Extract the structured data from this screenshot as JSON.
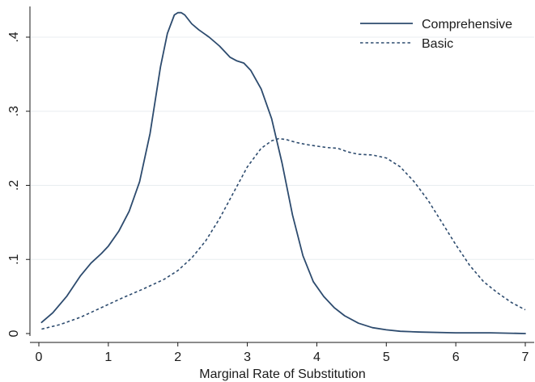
{
  "chart_data": {
    "type": "line",
    "title": "",
    "xlabel": "Marginal Rate of Substitution",
    "ylabel": "",
    "xlim": [
      0,
      7
    ],
    "ylim": [
      0,
      0.43
    ],
    "xticks": [
      0,
      1,
      2,
      3,
      4,
      5,
      6,
      7
    ],
    "xtick_labels": [
      "0",
      "1",
      "2",
      "3",
      "4",
      "5",
      "6",
      "7"
    ],
    "yticks": [
      0,
      0.1,
      0.2,
      0.3,
      0.4
    ],
    "ytick_labels": [
      "0",
      ".1",
      ".2",
      ".3",
      ".4"
    ],
    "ytick_rotation": "vertical",
    "grid": "horizontal",
    "legend_position": "top-right",
    "color": "#2d4b6e",
    "series": [
      {
        "name": "Comprehensive",
        "line_style": "solid",
        "x": [
          0.04,
          0.2,
          0.4,
          0.6,
          0.75,
          0.9,
          1.0,
          1.15,
          1.3,
          1.45,
          1.6,
          1.75,
          1.85,
          1.95,
          2.0,
          2.05,
          2.1,
          2.2,
          2.3,
          2.45,
          2.6,
          2.75,
          2.85,
          2.95,
          3.05,
          3.2,
          3.35,
          3.5,
          3.65,
          3.8,
          3.95,
          4.1,
          4.25,
          4.4,
          4.6,
          4.8,
          5.0,
          5.2,
          5.5,
          6.0,
          6.5,
          7.0
        ],
        "y": [
          0.015,
          0.028,
          0.05,
          0.078,
          0.095,
          0.108,
          0.118,
          0.138,
          0.165,
          0.205,
          0.27,
          0.36,
          0.405,
          0.43,
          0.433,
          0.433,
          0.43,
          0.418,
          0.41,
          0.4,
          0.388,
          0.373,
          0.368,
          0.365,
          0.355,
          0.33,
          0.29,
          0.23,
          0.16,
          0.105,
          0.07,
          0.05,
          0.035,
          0.024,
          0.014,
          0.008,
          0.005,
          0.003,
          0.002,
          0.001,
          0.001,
          0.0
        ],
        "values": [
          0.015,
          0.028,
          0.05,
          0.078,
          0.095,
          0.108,
          0.118,
          0.138,
          0.165,
          0.205,
          0.27,
          0.36,
          0.405,
          0.43,
          0.433,
          0.433,
          0.43,
          0.418,
          0.41,
          0.4,
          0.388,
          0.373,
          0.368,
          0.365,
          0.355,
          0.33,
          0.29,
          0.23,
          0.16,
          0.105,
          0.07,
          0.05,
          0.035,
          0.024,
          0.014,
          0.008,
          0.005,
          0.003,
          0.002,
          0.001,
          0.001,
          0.0
        ]
      },
      {
        "name": "Basic",
        "line_style": "dashed",
        "x": [
          0.04,
          0.3,
          0.6,
          0.9,
          1.2,
          1.5,
          1.8,
          2.0,
          2.2,
          2.4,
          2.6,
          2.8,
          3.0,
          3.2,
          3.35,
          3.45,
          3.55,
          3.7,
          3.85,
          4.0,
          4.15,
          4.3,
          4.45,
          4.6,
          4.8,
          5.0,
          5.2,
          5.4,
          5.6,
          5.8,
          6.0,
          6.2,
          6.4,
          6.6,
          6.8,
          7.0
        ],
        "y": [
          0.006,
          0.012,
          0.022,
          0.035,
          0.048,
          0.06,
          0.073,
          0.085,
          0.102,
          0.125,
          0.155,
          0.19,
          0.225,
          0.25,
          0.26,
          0.263,
          0.262,
          0.258,
          0.255,
          0.253,
          0.251,
          0.25,
          0.245,
          0.242,
          0.241,
          0.237,
          0.225,
          0.205,
          0.18,
          0.15,
          0.12,
          0.092,
          0.07,
          0.055,
          0.042,
          0.032
        ],
        "values": [
          0.006,
          0.012,
          0.022,
          0.035,
          0.048,
          0.06,
          0.073,
          0.085,
          0.102,
          0.125,
          0.155,
          0.19,
          0.225,
          0.25,
          0.26,
          0.263,
          0.262,
          0.258,
          0.255,
          0.253,
          0.251,
          0.25,
          0.245,
          0.242,
          0.241,
          0.237,
          0.225,
          0.205,
          0.18,
          0.15,
          0.12,
          0.092,
          0.07,
          0.055,
          0.042,
          0.032
        ]
      }
    ]
  }
}
